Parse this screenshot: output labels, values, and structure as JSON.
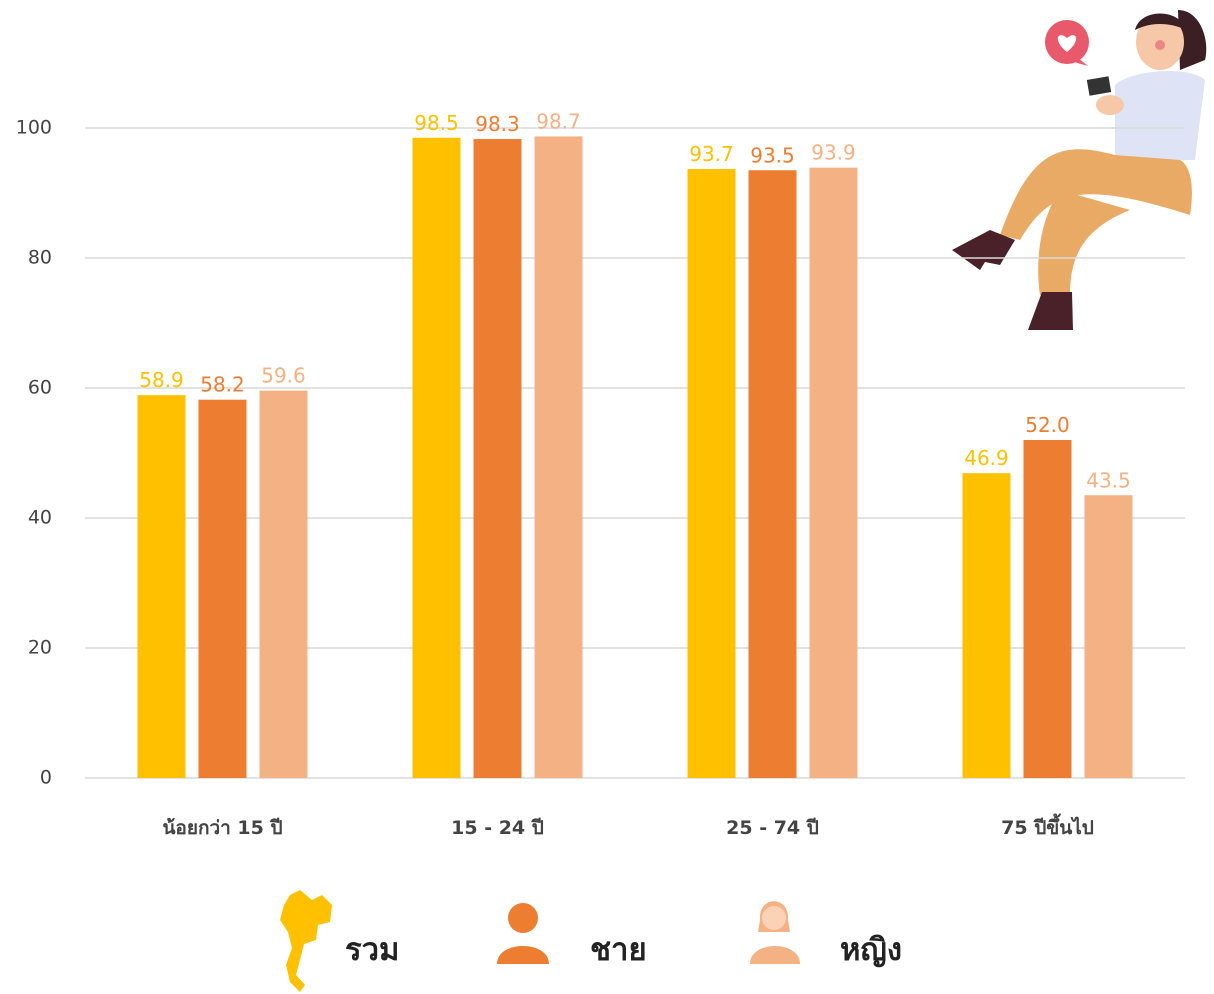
{
  "chart_data": {
    "type": "bar",
    "categories": [
      "น้อยกว่า 15 ปี",
      "15 - 24 ปี",
      "25 - 74 ปี",
      "75 ปีขึ้นไป"
    ],
    "series": [
      {
        "name": "รวม",
        "color": "#FFC000",
        "values": [
          58.9,
          98.5,
          93.7,
          46.9
        ],
        "value_labels": [
          "58.9",
          "98.5",
          "93.7",
          "46.9"
        ]
      },
      {
        "name": "ชาย",
        "color": "#ED7D31",
        "values": [
          58.2,
          98.3,
          93.5,
          52.0
        ],
        "value_labels": [
          "58.2",
          "98.3",
          "93.5",
          "52.0"
        ]
      },
      {
        "name": "หญิง",
        "color": "#F4B183",
        "values": [
          59.6,
          98.7,
          93.9,
          43.5
        ],
        "value_labels": [
          "59.6",
          "98.7",
          "93.9",
          "43.5"
        ]
      }
    ],
    "ylim": [
      0,
      100
    ],
    "yticks": [
      0,
      20,
      40,
      60,
      80,
      100
    ],
    "grid": true
  }
}
